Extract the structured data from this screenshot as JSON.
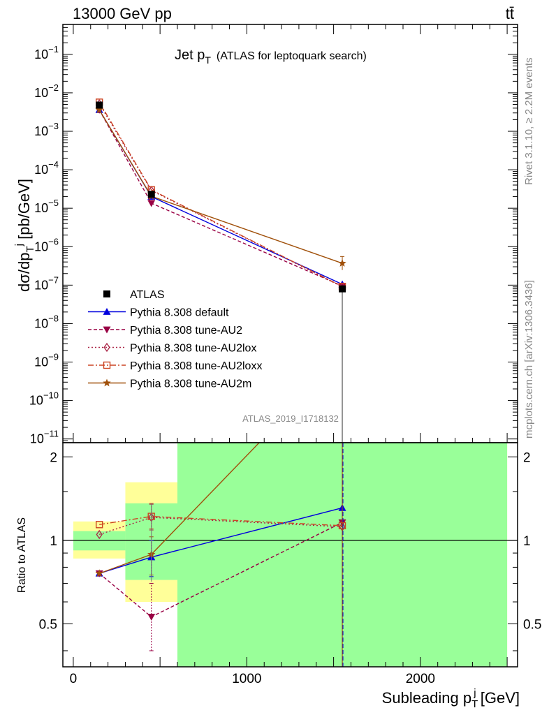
{
  "header": {
    "left": "13000 GeV pp",
    "right": "tt̄"
  },
  "side": {
    "rivet": "Rivet 3.1.10, ≥ 2.2M events",
    "mcplots": "mcplots.cern.ch [arXiv:1306.3436]"
  },
  "chart_data": {
    "type": "line",
    "title_main": "Jet p",
    "title_sub": "T",
    "title_suffix": "(ATLAS for leptoquark search)",
    "ylabel": "dσ/dp_T^j [pb/GeV]",
    "xlabel": "Subleading p_T^j [GeV]",
    "ratio_ylabel": "Ratio to ATLAS",
    "watermark": "ATLAS_2019_I1718132",
    "xlim": [
      -60,
      2560
    ],
    "ylim": [
      8e-12,
      0.6
    ],
    "yscale": "log",
    "ratio_ylim": [
      0.35,
      2.25
    ],
    "ratio_yscale": "log",
    "x_ticks": [
      0,
      1000,
      2000
    ],
    "y_ticks": [
      "10^{-11}",
      "10^{-10}",
      "10^{-9}",
      "10^{-8}",
      "10^{-7}",
      "10^{-6}",
      "10^{-5}",
      "10^{-4}",
      "10^{-3}",
      "10^{-2}",
      "10^{-1}"
    ],
    "ratio_ticks": [
      0.5,
      1,
      2
    ],
    "bins": [
      {
        "lo": 0,
        "hi": 300,
        "x": 150
      },
      {
        "lo": 300,
        "hi": 600,
        "x": 450
      },
      {
        "lo": 600,
        "hi": 2500,
        "x": 1550
      }
    ],
    "atlas": {
      "name": "ATLAS",
      "values": [
        0.0048,
        2.3e-05,
        8e-08
      ],
      "band_stat": [
        [
          0.92,
          1.08
        ],
        [
          0.72,
          1.36
        ],
        [
          0.0,
          2.4
        ]
      ],
      "band_total": [
        [
          0.86,
          1.17
        ],
        [
          0.6,
          1.62
        ],
        [
          0.0,
          2.4
        ]
      ]
    },
    "series": [
      {
        "name": "Pythia 8.308 default",
        "color": "#0000dd",
        "marker": "triangle-up",
        "dash": "",
        "values": [
          0.0036,
          2e-05,
          1.05e-07
        ],
        "ratio": [
          0.76,
          0.87,
          1.31
        ],
        "ratio_err": [
          [
            0.0,
            0.0
          ],
          [
            0.13,
            0.13
          ],
          [
            0.0,
            0.0
          ]
        ]
      },
      {
        "name": "Pythia 8.308 tune-AU2",
        "color": "#990044",
        "marker": "triangle-down",
        "dash": "5,3",
        "values": [
          0.0036,
          1.35e-05,
          9.5e-08
        ],
        "ratio": [
          0.76,
          0.53,
          1.16
        ],
        "ratio_err": [
          [
            0.0,
            0.0
          ],
          [
            0.13,
            0.17
          ],
          [
            0.0,
            0.0
          ]
        ]
      },
      {
        "name": "Pythia 8.308 tune-AU2lox",
        "color": "#aa2244",
        "marker": "diamond",
        "dash": "2,3",
        "values": [
          0.0052,
          2.9e-05,
          9e-08
        ],
        "ratio": [
          1.05,
          1.21,
          1.12
        ],
        "ratio_err": [
          [
            0.0,
            0.0
          ],
          [
            0.12,
            0.14
          ],
          [
            0.0,
            0.0
          ]
        ]
      },
      {
        "name": "Pythia 8.308 tune-AU2loxx",
        "color": "#cc4422",
        "marker": "square-open",
        "dash": "8,3,2,3",
        "values": [
          0.0057,
          3e-05,
          9.2e-08
        ],
        "ratio": [
          1.14,
          1.22,
          1.13
        ],
        "ratio_err": [
          [
            0.0,
            0.0
          ],
          [
            0.12,
            0.14
          ],
          [
            0.0,
            0.0
          ]
        ]
      },
      {
        "name": "Pythia 8.308 tune-AU2m",
        "color": "#a0500a",
        "marker": "star",
        "dash": "",
        "values": [
          0.0036,
          2.05e-05,
          3.7e-07
        ],
        "ratio": [
          0.76,
          0.89,
          4.6
        ],
        "ratio_err": [
          [
            0.0,
            0.0
          ],
          [
            0.14,
            0.14
          ],
          [
            0.0,
            0.0
          ]
        ]
      }
    ]
  }
}
